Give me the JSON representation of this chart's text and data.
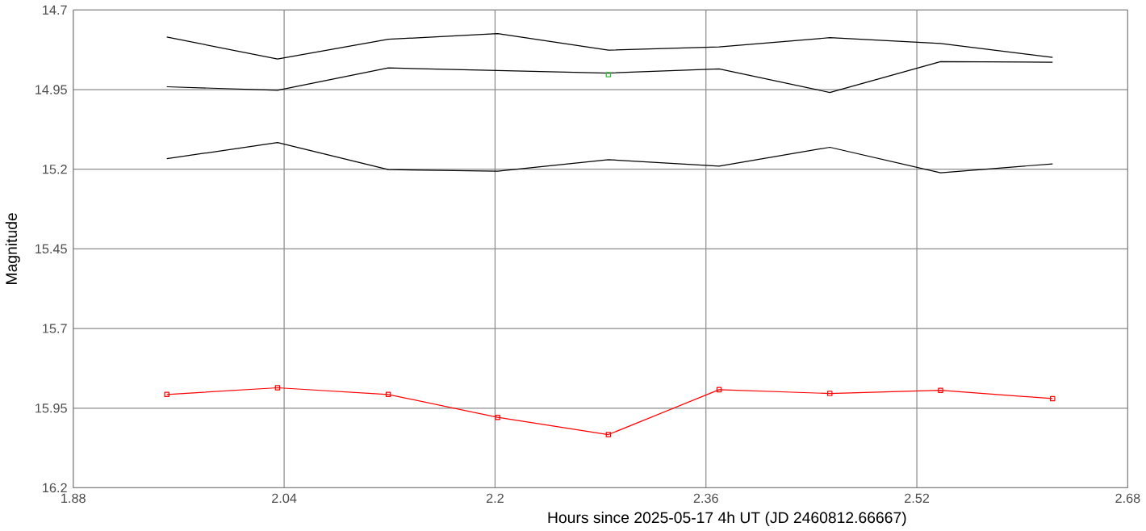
{
  "chart_data": {
    "type": "line",
    "xlabel": "Hours since 2025-05-17 4h UT (JD 2460812.66667)",
    "ylabel": "Magnitude",
    "xlim": [
      1.88,
      2.68
    ],
    "xticks": [
      1.88,
      2.04,
      2.2,
      2.36,
      2.52,
      2.68
    ],
    "ylim": [
      16.2,
      14.7
    ],
    "yticks": [
      14.7,
      14.95,
      15.2,
      15.45,
      15.7,
      15.95,
      16.2
    ],
    "grid": true,
    "x": [
      1.951,
      2.035,
      2.119,
      2.202,
      2.286,
      2.37,
      2.454,
      2.538,
      2.623
    ],
    "series": [
      {
        "color": "#000000",
        "marker": "none",
        "values": [
          14.785,
          14.854,
          14.792,
          14.774,
          14.826,
          14.816,
          14.787,
          14.805,
          14.849
        ]
      },
      {
        "color": "#000000",
        "marker": "none",
        "values": [
          14.941,
          14.952,
          14.882,
          14.89,
          14.898,
          14.885,
          14.959,
          14.862,
          14.864
        ]
      },
      {
        "color": "#000000",
        "marker": "none",
        "values": [
          15.167,
          15.116,
          15.201,
          15.206,
          15.17,
          15.19,
          15.131,
          15.211,
          15.183
        ]
      },
      {
        "color": "#ff0000",
        "marker": "square",
        "values": [
          15.907,
          15.886,
          15.907,
          15.979,
          16.033,
          15.892,
          15.904,
          15.894,
          15.92
        ]
      },
      {
        "type": "scatter",
        "color": "#33bb33",
        "marker": "square",
        "x": [
          2.286
        ],
        "values": [
          14.903
        ]
      }
    ]
  }
}
